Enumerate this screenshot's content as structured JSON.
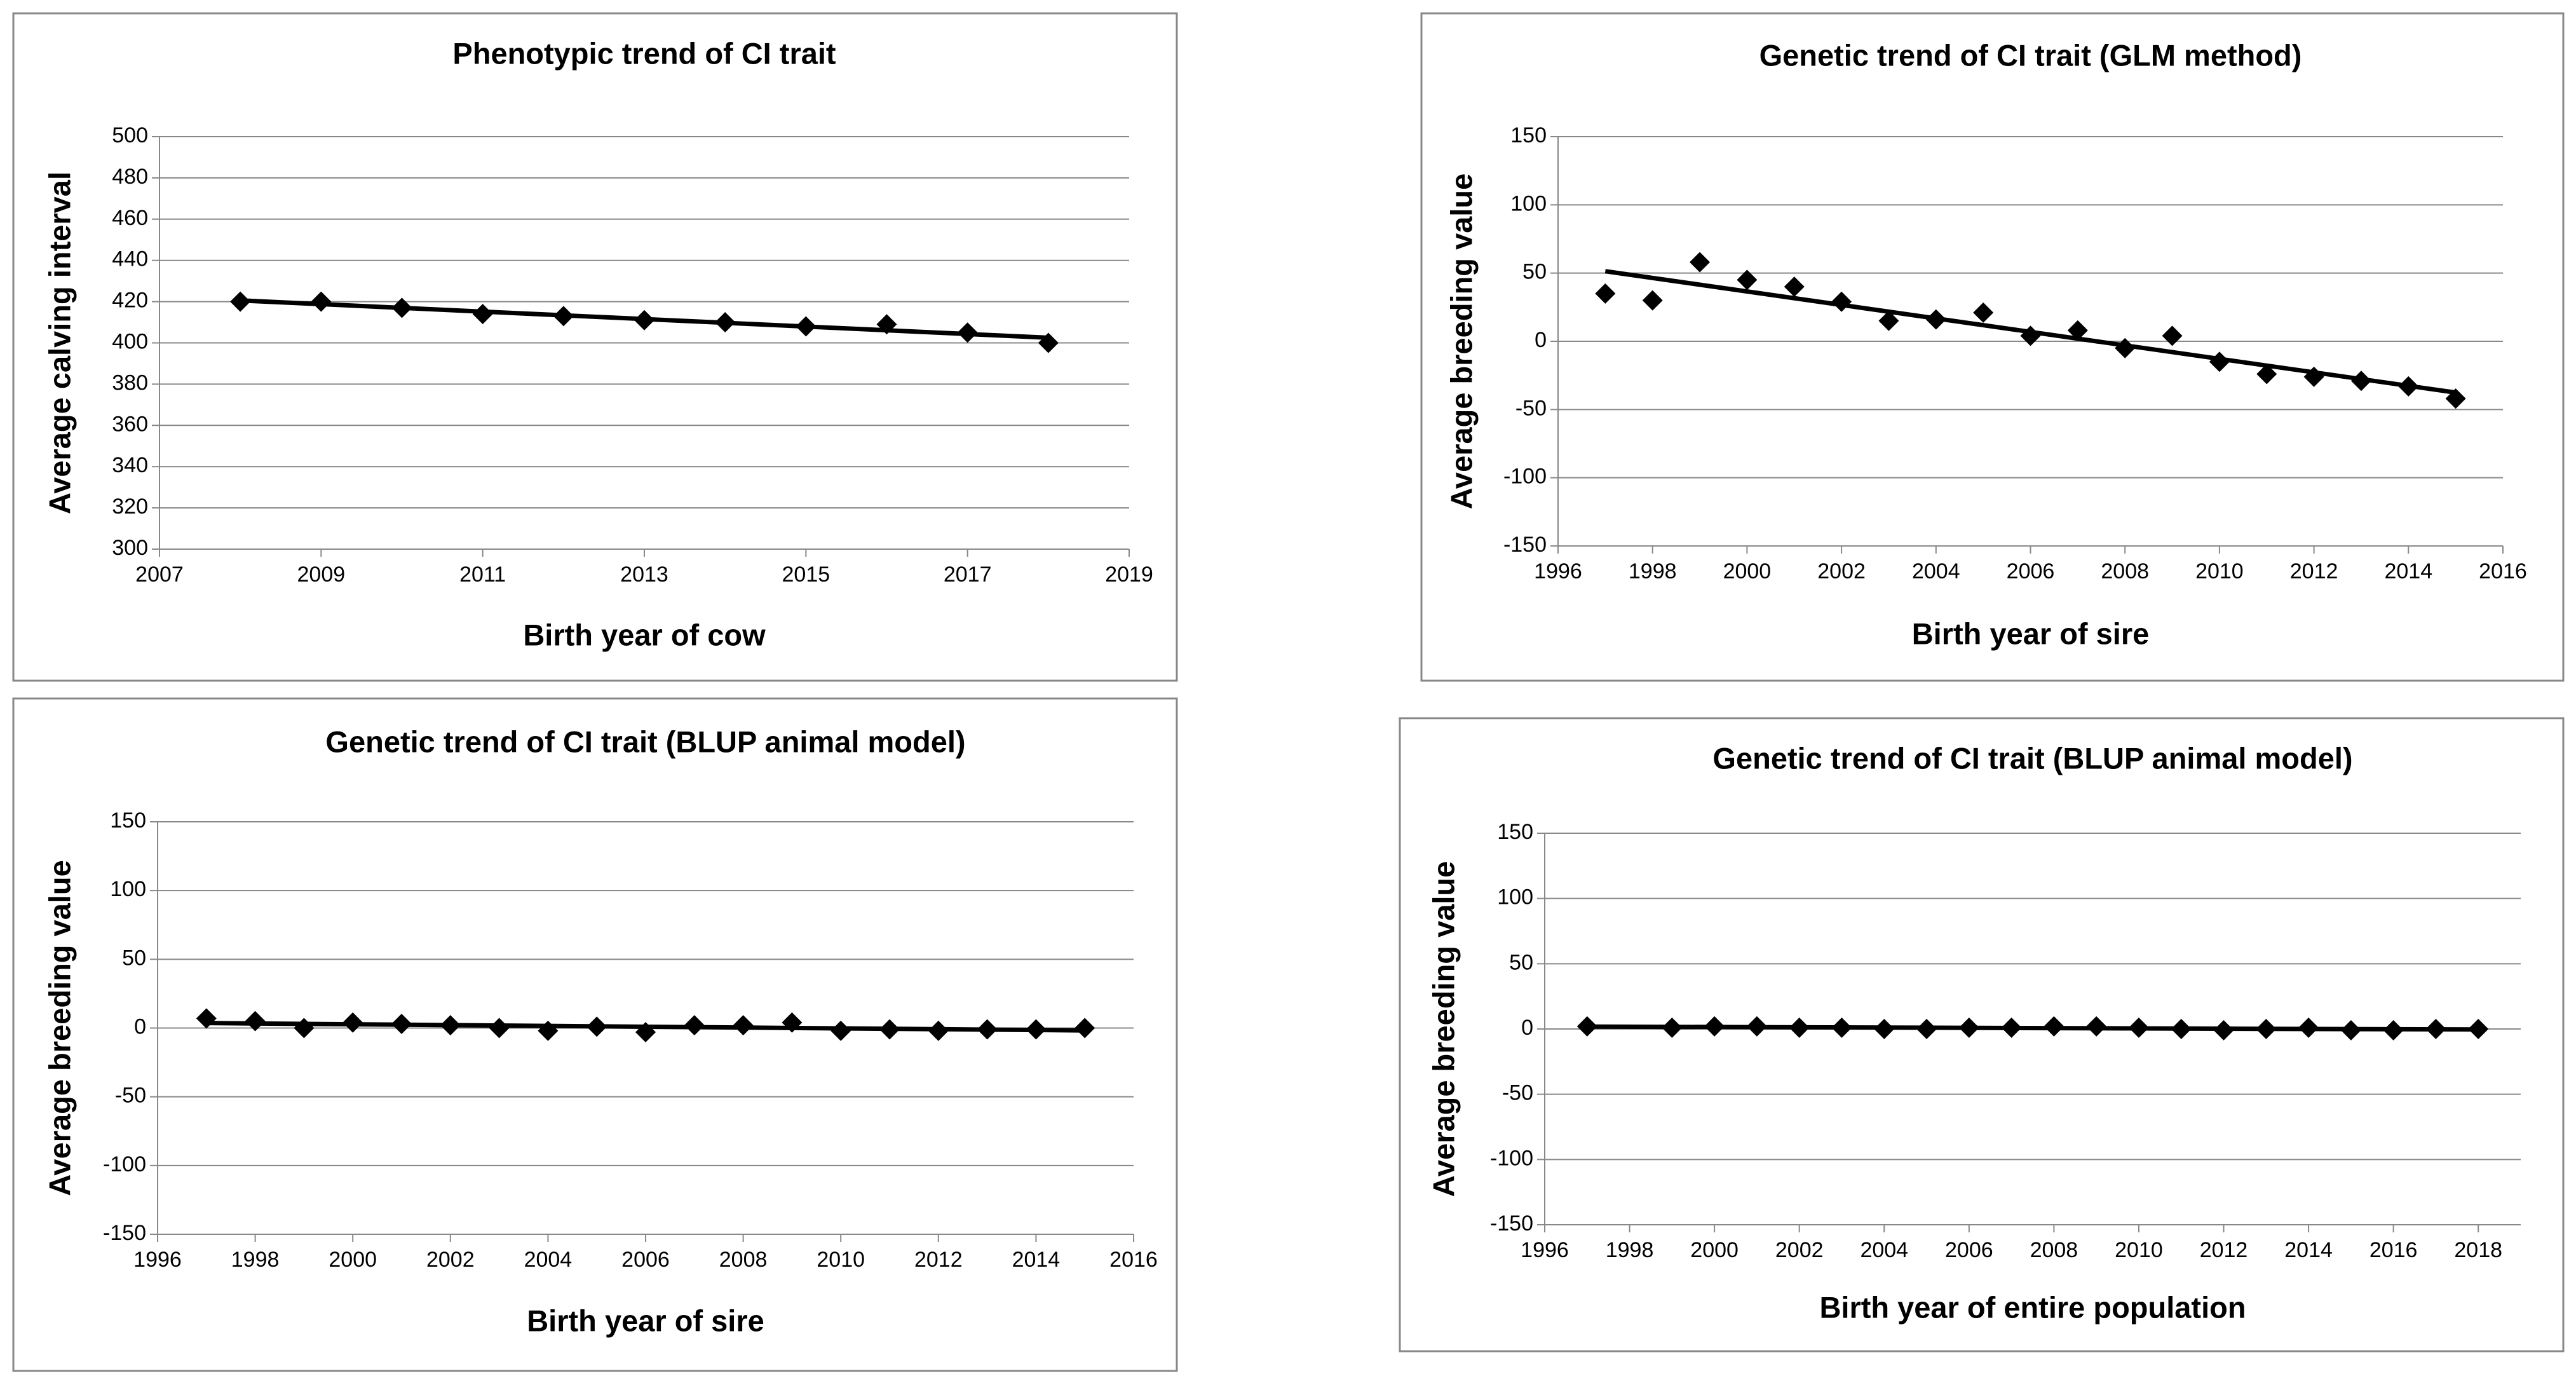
{
  "chart_data": [
    {
      "type": "scatter",
      "title": "Phenotypic trend of CI trait",
      "x_label": "Birth year of cow",
      "y_label": "Average calving interval",
      "x": [
        2008,
        2009,
        2010,
        2011,
        2012,
        2013,
        2014,
        2015,
        2016,
        2017,
        2018
      ],
      "values": [
        420,
        420,
        417,
        414,
        413,
        411,
        410,
        408,
        409,
        405,
        400
      ],
      "xlim": [
        2007,
        2019
      ],
      "xticks": [
        2007,
        2009,
        2011,
        2013,
        2015,
        2017,
        2019
      ],
      "ylim": [
        300,
        500
      ],
      "yticks": [
        300,
        320,
        340,
        360,
        380,
        400,
        420,
        440,
        460,
        480,
        500
      ],
      "grid": true,
      "color": "#000000",
      "trendline": true
    },
    {
      "type": "scatter",
      "title": "Genetic trend of CI trait (GLM method)",
      "x_label": "Birth year of sire",
      "y_label": "Average breeding value",
      "x": [
        1997,
        1998,
        1999,
        2000,
        2001,
        2002,
        2003,
        2004,
        2005,
        2006,
        2007,
        2008,
        2009,
        2010,
        2011,
        2012,
        2013,
        2014,
        2015
      ],
      "values": [
        35,
        30,
        58,
        45,
        40,
        29,
        15,
        16,
        21,
        4,
        8,
        -5,
        4,
        -15,
        -24,
        -26,
        -29,
        -33,
        -42
      ],
      "xlim": [
        1996,
        2016
      ],
      "xticks": [
        1996,
        1998,
        2000,
        2002,
        2004,
        2006,
        2008,
        2010,
        2012,
        2014,
        2016
      ],
      "ylim": [
        -150,
        150
      ],
      "yticks": [
        -150,
        -100,
        -50,
        0,
        50,
        100,
        150
      ],
      "grid": true,
      "color": "#000000",
      "trendline": true
    },
    {
      "type": "scatter",
      "title": "Genetic trend of CI trait (BLUP animal model)",
      "x_label": "Birth year of sire",
      "y_label": "Average breeding value",
      "x": [
        1997,
        1998,
        1999,
        2000,
        2001,
        2002,
        2003,
        2004,
        2005,
        2006,
        2007,
        2008,
        2009,
        2010,
        2011,
        2012,
        2013,
        2014,
        2015
      ],
      "values": [
        7,
        5,
        0,
        4,
        3,
        2,
        0,
        -2,
        1,
        -3,
        2,
        2,
        4,
        -2,
        -1,
        -2,
        -1,
        -1,
        0
      ],
      "xlim": [
        1996,
        2016
      ],
      "xticks": [
        1996,
        1998,
        2000,
        2002,
        2004,
        2006,
        2008,
        2010,
        2012,
        2014,
        2016
      ],
      "ylim": [
        -150,
        150
      ],
      "yticks": [
        -150,
        -100,
        -50,
        0,
        50,
        100,
        150
      ],
      "grid": true,
      "color": "#000000",
      "trendline": true
    },
    {
      "type": "scatter",
      "title": "Genetic trend of CI trait (BLUP animal model)",
      "x_label": "Birth year of entire population",
      "y_label": "Average breeding value",
      "x": [
        1997,
        1999,
        2000,
        2001,
        2002,
        2003,
        2004,
        2005,
        2006,
        2007,
        2008,
        2009,
        2010,
        2011,
        2012,
        2013,
        2014,
        2015,
        2016,
        2017,
        2018
      ],
      "values": [
        2,
        1,
        2,
        2,
        1,
        1,
        0,
        0,
        1,
        1,
        2,
        2,
        1,
        0,
        -1,
        0,
        1,
        -1,
        -1,
        0,
        0
      ],
      "xlim": [
        1996,
        2019
      ],
      "xticks": [
        1996,
        1998,
        2000,
        2002,
        2004,
        2006,
        2008,
        2010,
        2012,
        2014,
        2016,
        2018
      ],
      "ylim": [
        -150,
        150
      ],
      "yticks": [
        -150,
        -100,
        -50,
        0,
        50,
        100,
        150
      ],
      "grid": true,
      "color": "#000000",
      "trendline": true
    }
  ]
}
